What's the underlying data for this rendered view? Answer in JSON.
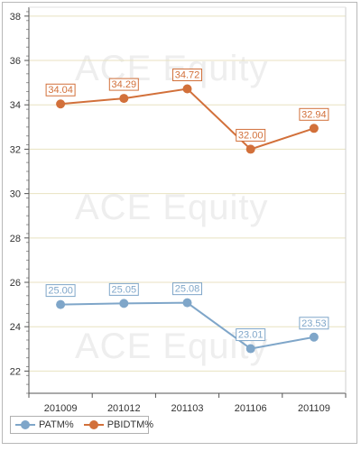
{
  "chart_data": {
    "type": "line",
    "categories": [
      "201009",
      "201012",
      "201103",
      "201106",
      "201109"
    ],
    "series": [
      {
        "name": "PATM%",
        "values": [
          25.0,
          25.05,
          25.08,
          23.01,
          23.53
        ],
        "labels": [
          "25.00",
          "25.05",
          "25.08",
          "23.01",
          "23.53"
        ],
        "color": "#7fa6c9"
      },
      {
        "name": "PBIDTM%",
        "values": [
          34.04,
          34.29,
          34.72,
          32.0,
          32.94
        ],
        "labels": [
          "34.04",
          "34.29",
          "34.72",
          "32.00",
          "32.94"
        ],
        "color": "#d2703a"
      }
    ],
    "yticks": [
      "22",
      "24",
      "26",
      "28",
      "30",
      "32",
      "34",
      "36",
      "38"
    ],
    "ylim": [
      21,
      38.4
    ],
    "grid": true,
    "legend": "bottom-left",
    "gridline_color": "#e8e2c0",
    "axis_color": "#555555"
  },
  "watermark": "ACE Equity"
}
